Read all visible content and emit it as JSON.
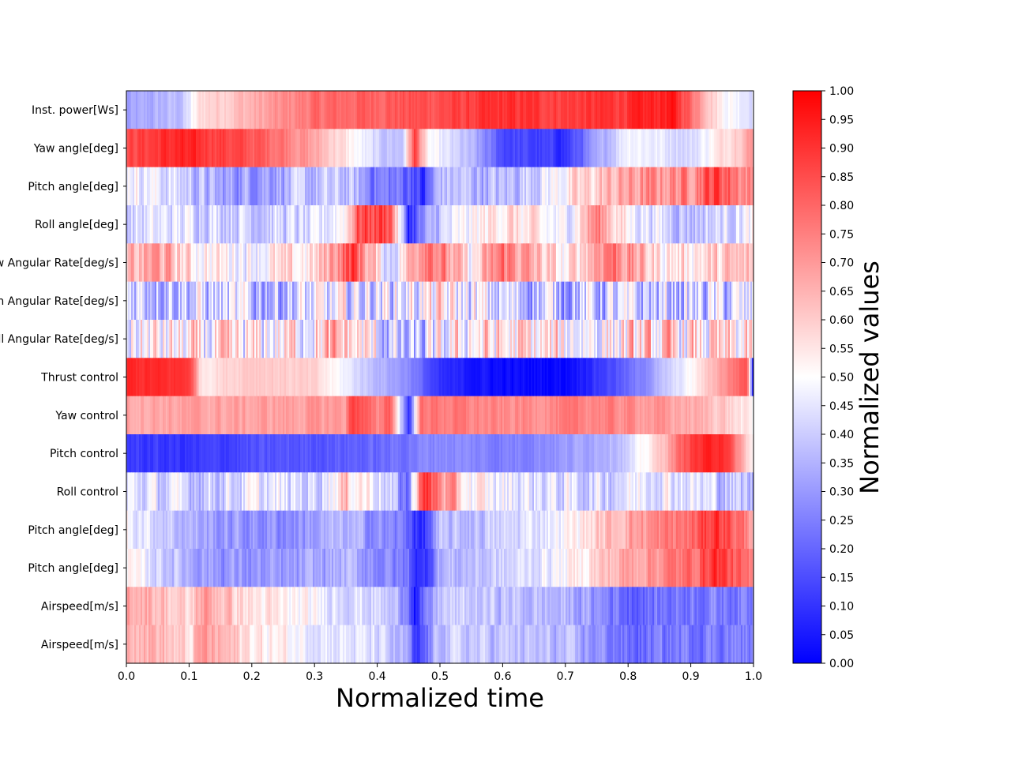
{
  "chart_data": {
    "type": "heatmap",
    "xlabel": "Normalized time",
    "xlim": [
      0,
      1
    ],
    "x_ticks": [
      "0.0",
      "0.1",
      "0.2",
      "0.3",
      "0.4",
      "0.5",
      "0.6",
      "0.7",
      "0.8",
      "0.9",
      "1.0"
    ],
    "rows": [
      "Inst. power[Ws]",
      "Yaw angle[deg]",
      "Pitch angle[deg]",
      "Roll angle[deg]",
      "w Angular Rate[deg/s]",
      "n Angular Rate[deg/s]",
      "ll Angular Rate[deg/s]",
      "Thrust control",
      "Yaw control",
      "Pitch control",
      "Roll control",
      "Pitch angle[deg]",
      "Pitch angle[deg]",
      "Airspeed[m/s]",
      "Airspeed[m/s]"
    ],
    "colormap": {
      "name": "bwr",
      "low": "#0000ff",
      "mid": "#ffffff",
      "high": "#ff0000"
    },
    "colorbar": {
      "label": "Normalized values",
      "range": [
        0,
        1
      ],
      "ticks": [
        "0.00",
        "0.05",
        "0.10",
        "0.15",
        "0.20",
        "0.25",
        "0.30",
        "0.35",
        "0.40",
        "0.45",
        "0.50",
        "0.55",
        "0.60",
        "0.65",
        "0.70",
        "0.75",
        "0.80",
        "0.85",
        "0.90",
        "0.95",
        "1.00"
      ]
    },
    "row_trends": [
      [
        [
          0.0,
          0.3
        ],
        [
          0.09,
          0.38
        ],
        [
          0.12,
          0.58
        ],
        [
          0.2,
          0.65
        ],
        [
          0.3,
          0.78
        ],
        [
          0.4,
          0.82
        ],
        [
          0.5,
          0.85
        ],
        [
          0.6,
          0.9
        ],
        [
          0.7,
          0.88
        ],
        [
          0.8,
          0.9
        ],
        [
          0.87,
          0.95
        ],
        [
          0.9,
          0.8
        ],
        [
          0.95,
          0.52
        ],
        [
          1.0,
          0.45
        ]
      ],
      [
        [
          0.0,
          0.85
        ],
        [
          0.08,
          0.92
        ],
        [
          0.15,
          0.88
        ],
        [
          0.25,
          0.78
        ],
        [
          0.33,
          0.6
        ],
        [
          0.4,
          0.4
        ],
        [
          0.44,
          0.38
        ],
        [
          0.46,
          0.88
        ],
        [
          0.48,
          0.5
        ],
        [
          0.55,
          0.35
        ],
        [
          0.6,
          0.15
        ],
        [
          0.7,
          0.1
        ],
        [
          0.75,
          0.3
        ],
        [
          0.8,
          0.5
        ],
        [
          0.9,
          0.42
        ],
        [
          1.0,
          0.7
        ]
      ],
      [
        [
          0.0,
          0.52
        ],
        [
          0.1,
          0.4
        ],
        [
          0.15,
          0.3
        ],
        [
          0.25,
          0.35
        ],
        [
          0.35,
          0.38
        ],
        [
          0.4,
          0.25
        ],
        [
          0.46,
          0.2
        ],
        [
          0.47,
          0.05
        ],
        [
          0.5,
          0.38
        ],
        [
          0.6,
          0.35
        ],
        [
          0.7,
          0.52
        ],
        [
          0.8,
          0.68
        ],
        [
          0.9,
          0.75
        ],
        [
          0.94,
          0.88
        ],
        [
          1.0,
          0.7
        ]
      ],
      [
        [
          0.0,
          0.42
        ],
        [
          0.1,
          0.45
        ],
        [
          0.2,
          0.42
        ],
        [
          0.3,
          0.4
        ],
        [
          0.35,
          0.55
        ],
        [
          0.37,
          0.85
        ],
        [
          0.42,
          0.88
        ],
        [
          0.45,
          0.1
        ],
        [
          0.5,
          0.4
        ],
        [
          0.6,
          0.58
        ],
        [
          0.7,
          0.45
        ],
        [
          0.75,
          0.75
        ],
        [
          0.8,
          0.5
        ],
        [
          0.9,
          0.38
        ],
        [
          1.0,
          0.48
        ]
      ],
      [
        [
          0.0,
          0.6
        ],
        [
          0.05,
          0.7
        ],
        [
          0.1,
          0.55
        ],
        [
          0.2,
          0.5
        ],
        [
          0.3,
          0.55
        ],
        [
          0.36,
          0.88
        ],
        [
          0.42,
          0.4
        ],
        [
          0.48,
          0.85
        ],
        [
          0.55,
          0.5
        ],
        [
          0.6,
          0.78
        ],
        [
          0.7,
          0.5
        ],
        [
          0.77,
          0.8
        ],
        [
          0.85,
          0.55
        ],
        [
          1.0,
          0.6
        ]
      ],
      [
        [
          0.0,
          0.45
        ],
        [
          0.2,
          0.38
        ],
        [
          0.4,
          0.45
        ],
        [
          0.5,
          0.5
        ],
        [
          0.6,
          0.4
        ],
        [
          0.8,
          0.38
        ],
        [
          1.0,
          0.4
        ]
      ],
      [
        [
          0.0,
          0.5
        ],
        [
          0.2,
          0.48
        ],
        [
          0.35,
          0.6
        ],
        [
          0.45,
          0.3
        ],
        [
          0.55,
          0.55
        ],
        [
          0.7,
          0.5
        ],
        [
          0.85,
          0.55
        ],
        [
          1.0,
          0.5
        ]
      ],
      [
        [
          0.0,
          0.92
        ],
        [
          0.1,
          0.9
        ],
        [
          0.12,
          0.55
        ],
        [
          0.2,
          0.62
        ],
        [
          0.3,
          0.58
        ],
        [
          0.38,
          0.4
        ],
        [
          0.45,
          0.28
        ],
        [
          0.5,
          0.08
        ],
        [
          0.6,
          0.02
        ],
        [
          0.7,
          0.02
        ],
        [
          0.8,
          0.2
        ],
        [
          0.9,
          0.5
        ],
        [
          0.95,
          0.7
        ],
        [
          0.99,
          0.85
        ],
        [
          1.0,
          0.0
        ]
      ],
      [
        [
          0.0,
          0.68
        ],
        [
          0.2,
          0.68
        ],
        [
          0.35,
          0.7
        ],
        [
          0.36,
          0.9
        ],
        [
          0.4,
          0.72
        ],
        [
          0.42,
          0.85
        ],
        [
          0.45,
          0.1
        ],
        [
          0.47,
          0.78
        ],
        [
          0.6,
          0.72
        ],
        [
          0.75,
          0.75
        ],
        [
          0.85,
          0.7
        ],
        [
          0.95,
          0.62
        ],
        [
          1.0,
          0.5
        ]
      ],
      [
        [
          0.0,
          0.12
        ],
        [
          0.1,
          0.1
        ],
        [
          0.2,
          0.15
        ],
        [
          0.4,
          0.2
        ],
        [
          0.5,
          0.28
        ],
        [
          0.6,
          0.25
        ],
        [
          0.7,
          0.3
        ],
        [
          0.8,
          0.4
        ],
        [
          0.85,
          0.6
        ],
        [
          0.9,
          0.88
        ],
        [
          0.95,
          0.95
        ],
        [
          1.0,
          0.5
        ]
      ],
      [
        [
          0.0,
          0.45
        ],
        [
          0.1,
          0.4
        ],
        [
          0.2,
          0.45
        ],
        [
          0.3,
          0.42
        ],
        [
          0.35,
          0.6
        ],
        [
          0.4,
          0.5
        ],
        [
          0.45,
          0.2
        ],
        [
          0.47,
          0.9
        ],
        [
          0.55,
          0.5
        ],
        [
          0.65,
          0.45
        ],
        [
          0.75,
          0.42
        ],
        [
          0.85,
          0.5
        ],
        [
          0.95,
          0.4
        ],
        [
          1.0,
          0.35
        ]
      ],
      [
        [
          0.0,
          0.5
        ],
        [
          0.1,
          0.35
        ],
        [
          0.15,
          0.3
        ],
        [
          0.25,
          0.28
        ],
        [
          0.35,
          0.35
        ],
        [
          0.45,
          0.22
        ],
        [
          0.47,
          0.05
        ],
        [
          0.5,
          0.35
        ],
        [
          0.6,
          0.4
        ],
        [
          0.7,
          0.5
        ],
        [
          0.8,
          0.68
        ],
        [
          0.9,
          0.78
        ],
        [
          0.94,
          0.92
        ],
        [
          1.0,
          0.7
        ]
      ],
      [
        [
          0.0,
          0.5
        ],
        [
          0.1,
          0.35
        ],
        [
          0.15,
          0.3
        ],
        [
          0.25,
          0.28
        ],
        [
          0.35,
          0.35
        ],
        [
          0.45,
          0.22
        ],
        [
          0.47,
          0.05
        ],
        [
          0.5,
          0.35
        ],
        [
          0.6,
          0.4
        ],
        [
          0.7,
          0.5
        ],
        [
          0.8,
          0.68
        ],
        [
          0.9,
          0.78
        ],
        [
          0.94,
          0.92
        ],
        [
          1.0,
          0.7
        ]
      ],
      [
        [
          0.0,
          0.7
        ],
        [
          0.05,
          0.65
        ],
        [
          0.1,
          0.55
        ],
        [
          0.12,
          0.7
        ],
        [
          0.2,
          0.55
        ],
        [
          0.3,
          0.48
        ],
        [
          0.4,
          0.42
        ],
        [
          0.45,
          0.3
        ],
        [
          0.46,
          0.05
        ],
        [
          0.5,
          0.4
        ],
        [
          0.6,
          0.38
        ],
        [
          0.7,
          0.35
        ],
        [
          0.78,
          0.25
        ],
        [
          0.8,
          0.2
        ],
        [
          0.9,
          0.25
        ],
        [
          1.0,
          0.25
        ]
      ],
      [
        [
          0.0,
          0.7
        ],
        [
          0.05,
          0.65
        ],
        [
          0.1,
          0.55
        ],
        [
          0.12,
          0.7
        ],
        [
          0.2,
          0.55
        ],
        [
          0.3,
          0.48
        ],
        [
          0.4,
          0.42
        ],
        [
          0.45,
          0.3
        ],
        [
          0.46,
          0.05
        ],
        [
          0.5,
          0.4
        ],
        [
          0.6,
          0.38
        ],
        [
          0.7,
          0.35
        ],
        [
          0.78,
          0.25
        ],
        [
          0.8,
          0.2
        ],
        [
          0.9,
          0.25
        ],
        [
          1.0,
          0.25
        ]
      ]
    ],
    "row_noise": [
      0.06,
      0.06,
      0.14,
      0.14,
      0.16,
      0.28,
      0.3,
      0.04,
      0.06,
      0.05,
      0.16,
      0.1,
      0.1,
      0.1,
      0.1
    ],
    "grid": false,
    "legend": "colorbar-right"
  }
}
